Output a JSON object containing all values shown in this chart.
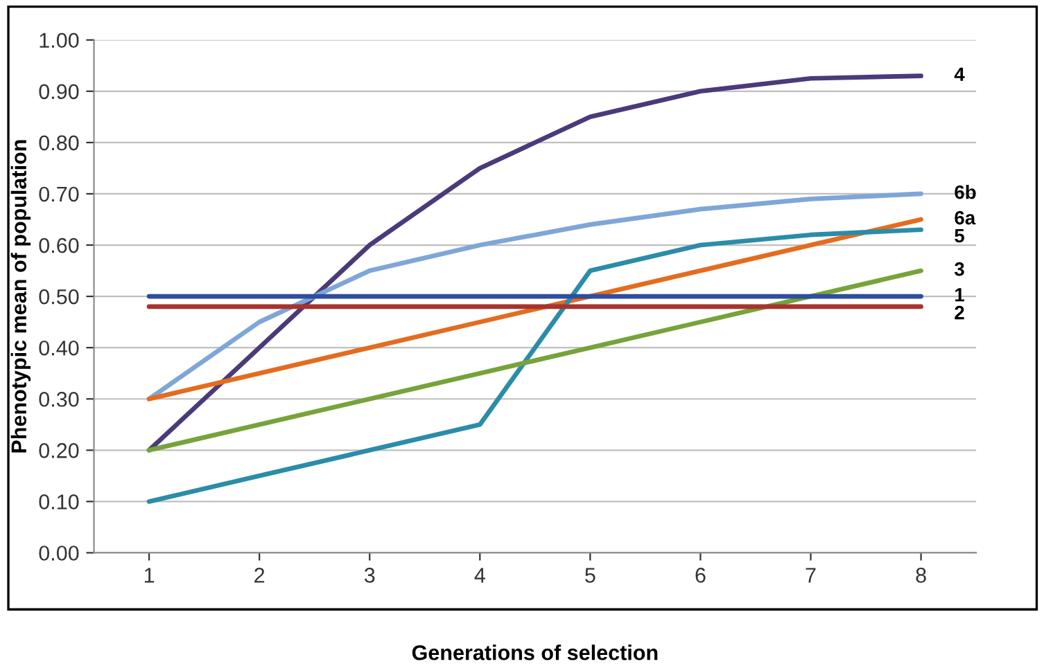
{
  "chart_data": {
    "type": "line",
    "xlabel": "Generations of selection",
    "ylabel": "Phenotypic mean of population",
    "categories": [
      "1",
      "2",
      "3",
      "4",
      "5",
      "6",
      "7",
      "8"
    ],
    "ylim": [
      0,
      1
    ],
    "yticks": [
      {
        "value": 0,
        "label": "0.00"
      },
      {
        "value": 0.1,
        "label": "0.10"
      },
      {
        "value": 0.2,
        "label": "0.20"
      },
      {
        "value": 0.3,
        "label": "0.30"
      },
      {
        "value": 0.4,
        "label": "0.40"
      },
      {
        "value": 0.5,
        "label": "0.50"
      },
      {
        "value": 0.6,
        "label": "0.60"
      },
      {
        "value": 0.7,
        "label": "0.70"
      },
      {
        "value": 0.8,
        "label": "0.80"
      },
      {
        "value": 0.9,
        "label": "0.90"
      },
      {
        "value": 1,
        "label": "1.00"
      }
    ],
    "grid": "y",
    "legend": false,
    "marker": "none",
    "line_style": "solid",
    "series": [
      {
        "name": "4",
        "color": "#4b3a7a",
        "values": [
          0.2,
          0.4,
          0.6,
          0.75,
          0.85,
          0.9,
          0.925,
          0.93
        ]
      },
      {
        "name": "6b",
        "color": "#7ea6d8",
        "values": [
          0.3,
          0.45,
          0.55,
          0.6,
          0.64,
          0.67,
          0.69,
          0.7
        ]
      },
      {
        "name": "6a",
        "color": "#e46c1f",
        "values": [
          0.3,
          0.35,
          0.4,
          0.45,
          0.5,
          0.55,
          0.6,
          0.65
        ]
      },
      {
        "name": "5",
        "color": "#2b8ca8",
        "values": [
          0.1,
          0.15,
          0.2,
          0.25,
          0.55,
          0.6,
          0.62,
          0.63
        ]
      },
      {
        "name": "3",
        "color": "#77a33a",
        "values": [
          0.2,
          0.25,
          0.3,
          0.35,
          0.4,
          0.45,
          0.5,
          0.55
        ]
      },
      {
        "name": "1",
        "color": "#2e4e9e",
        "values": [
          0.5,
          0.5,
          0.5,
          0.5,
          0.5,
          0.5,
          0.5,
          0.5
        ]
      },
      {
        "name": "2",
        "color": "#a8322d",
        "values": [
          0.48,
          0.48,
          0.48,
          0.48,
          0.48,
          0.48,
          0.48,
          0.48
        ]
      }
    ]
  }
}
